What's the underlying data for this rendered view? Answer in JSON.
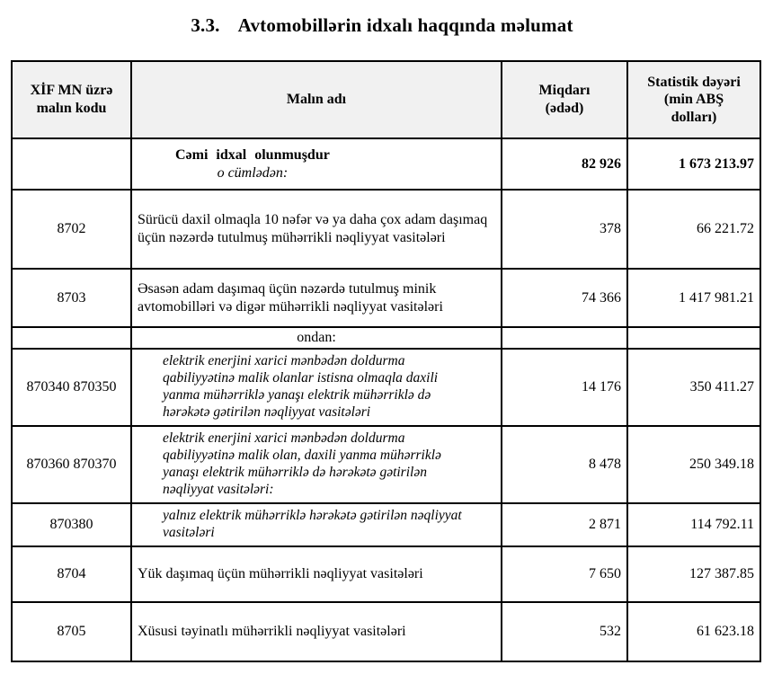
{
  "title": {
    "number": "3.3.",
    "text": "Avtomobillərin idxalı haqqında məlumat"
  },
  "table": {
    "headers": {
      "code": "XİF MN üzrə\nmalın kodu",
      "name": "Malın adı",
      "quantity": "Miqdarı\n(ədəd)",
      "value": "Statistik dəyəri\n(min ABŞ\ndolları)"
    },
    "total_row": {
      "name": "Cəmi idxal olunmuşdur",
      "subtitle": "o cümlədən:",
      "quantity": "82 926",
      "value": "1 673 213.97"
    },
    "subheader": "ondan:",
    "rows": [
      {
        "code": "8702",
        "name": "Sürücü daxil olmaqla 10 nəfər və ya daha çox adam daşımaq üçün nəzərdə tutulmuş mühərrikli nəqliyyat vasitələri",
        "quantity": "378",
        "value": "66 221.72"
      },
      {
        "code": "8703",
        "name": "Əsasən adam daşımaq üçün nəzərdə tutulmuş minik avtomobilləri və digər mühərrikli nəqliyyat vasitələri",
        "quantity": "74 366",
        "value": "1 417 981.21"
      },
      {
        "code": "870340 870350",
        "name": "elektrik enerjini xarici mənbədən doldurma qabiliyyətinə malik olanlar istisna olmaqla daxili yanma mühərriklə yanaşı elektrik mühərriklə də hərəkətə gətirilən nəqliyyat vasitələri",
        "quantity": "14 176",
        "value": "350 411.27"
      },
      {
        "code": "870360 870370",
        "name": "elektrik enerjini xarici mənbədən doldurma qabiliyyətinə malik olan, daxili yanma mühərriklə yanaşı elektrik mühərriklə də hərəkətə gətirilən nəqliyyat vasitələri:",
        "quantity": "8 478",
        "value": "250 349.18"
      },
      {
        "code": "870380",
        "name": "yalnız elektrik mühərriklə hərəkətə gətirilən nəqliyyat vasitələri",
        "quantity": "2 871",
        "value": "114 792.11"
      },
      {
        "code": "8704",
        "name": "Yük daşımaq üçün mühərrikli nəqliyyat vasitələri",
        "quantity": "7 650",
        "value": "127 387.85"
      },
      {
        "code": "8705",
        "name": "Xüsusi təyinatlı mühərrikli nəqliyyat vasitələri",
        "quantity": "532",
        "value": "61 623.18"
      }
    ],
    "colors": {
      "header_bg": "#f1f1f1",
      "border": "#000000",
      "text": "#000000",
      "page_bg": "#ffffff"
    }
  }
}
